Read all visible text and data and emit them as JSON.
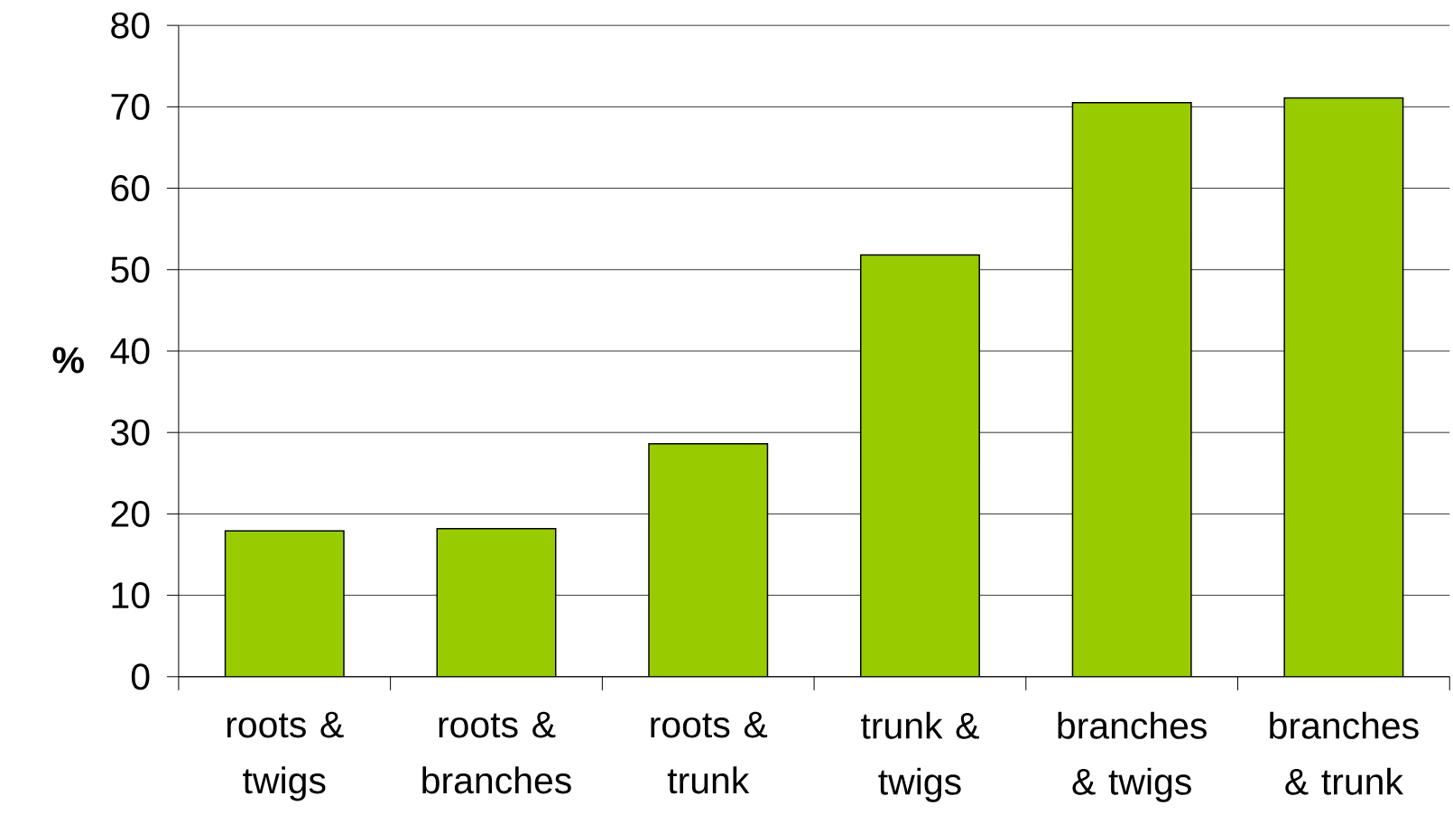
{
  "chart_data": {
    "type": "bar",
    "ylabel": "%",
    "categories": [
      "roots & twigs",
      "roots & branches",
      "roots & trunk",
      "trunk & twigs",
      "branches & twigs",
      "branches & trunk"
    ],
    "values": [
      17.9,
      18.2,
      28.6,
      51.8,
      70.5,
      71.1
    ],
    "color": "#99cc00",
    "ylim": [
      0,
      80
    ],
    "yticks": [
      0,
      10,
      20,
      30,
      40,
      50,
      60,
      70,
      80
    ],
    "grid": "y"
  }
}
